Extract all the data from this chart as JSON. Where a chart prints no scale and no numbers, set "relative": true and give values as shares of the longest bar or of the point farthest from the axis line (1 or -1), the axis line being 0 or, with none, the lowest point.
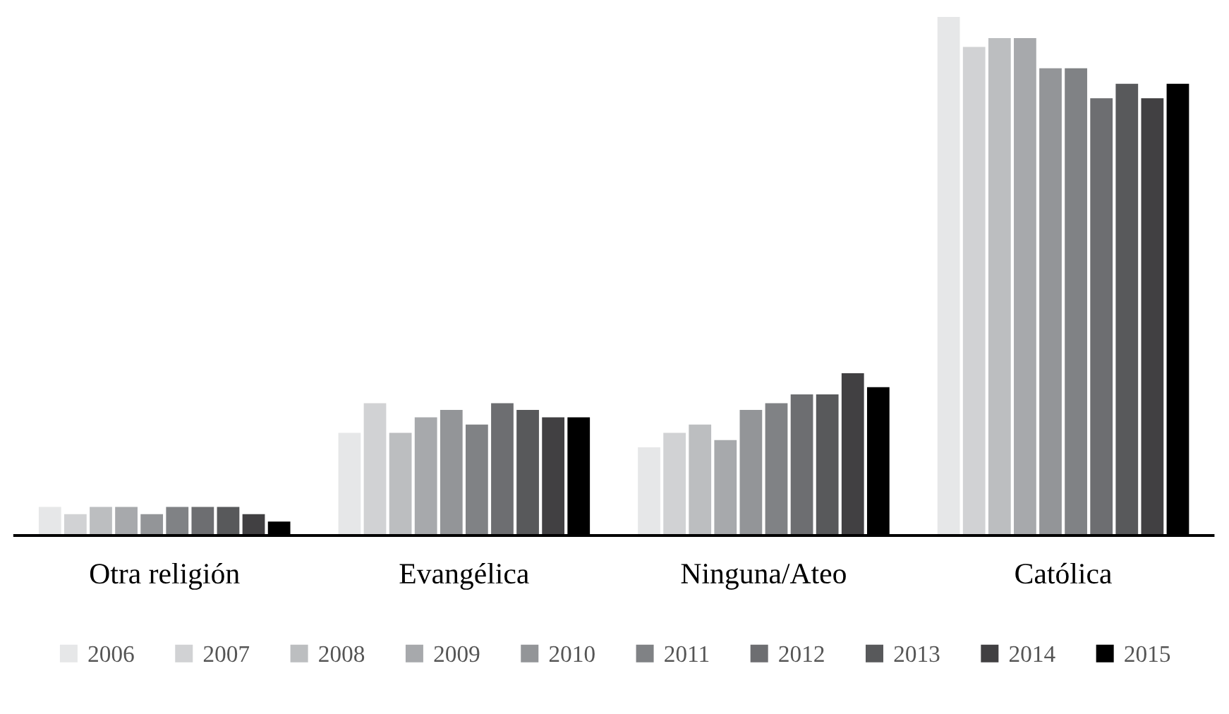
{
  "chart_data": {
    "type": "bar",
    "relative": true,
    "categories": [
      "Otra religión",
      "Evangélica",
      "Ninguna/Ateo",
      "Católica"
    ],
    "series": [
      {
        "name": "2006",
        "color": "#e6e7e8",
        "values": [
          0.055,
          0.198,
          0.17,
          1
        ]
      },
      {
        "name": "2007",
        "color": "#d1d2d4",
        "values": [
          0.041,
          0.255,
          0.198,
          0.942
        ]
      },
      {
        "name": "2008",
        "color": "#bcbec0",
        "values": [
          0.055,
          0.198,
          0.214,
          0.959
        ]
      },
      {
        "name": "2009",
        "color": "#a7a9ac",
        "values": [
          0.055,
          0.228,
          0.184,
          0.959
        ]
      },
      {
        "name": "2010",
        "color": "#939598",
        "values": [
          0.041,
          0.242,
          0.242,
          0.901
        ]
      },
      {
        "name": "2011",
        "color": "#808285",
        "values": [
          0.055,
          0.214,
          0.255,
          0.901
        ]
      },
      {
        "name": "2012",
        "color": "#6d6e71",
        "values": [
          0.055,
          0.255,
          0.272,
          0.843
        ]
      },
      {
        "name": "2013",
        "color": "#58595b",
        "values": [
          0.055,
          0.242,
          0.272,
          0.871
        ]
      },
      {
        "name": "2014",
        "color": "#414042",
        "values": [
          0.041,
          0.228,
          0.313,
          0.843
        ]
      },
      {
        "name": "2015",
        "color": "#000000",
        "values": [
          0.027,
          0.228,
          0.286,
          0.871
        ]
      }
    ],
    "legend": "bottom",
    "grid": false
  }
}
